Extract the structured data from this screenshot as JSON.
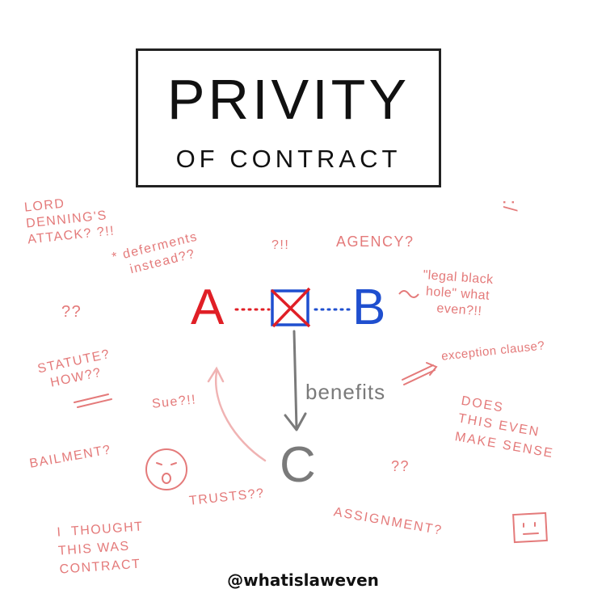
{
  "title": {
    "main": "PRIVITY",
    "sub": "OF CONTRACT"
  },
  "parties": {
    "a": "A",
    "b": "B",
    "c": "C"
  },
  "arrow_label": "benefits",
  "notes": {
    "lord_denning": "LORD\nDENNING'S\nATTACK? ?!!",
    "deferments": "* deferments\n   instead??",
    "qmarks_mid": "?!!",
    "agency": "AGENCY?",
    "frown_mark": ":/",
    "qq_left": "??",
    "legal_black_hole": "\"legal black\n hole\" what\n    even?!!",
    "statute": "STATUTE?\n  HOW??",
    "exception_clause": "exception clause?",
    "sue": "Sue?!!",
    "does_this": "DOES\nTHIS EVEN\nMAKE SENSE",
    "bailment": "BAILMENT?",
    "qq_right": "??",
    "trusts": "TRUSTS??",
    "i_thought": "I  THOUGHT\nTHIS WAS\nCONTRACT",
    "assignment": "ASSIGNMENT?"
  },
  "footer": {
    "handle": "@whatislaweven"
  },
  "colors": {
    "red": "#e01f26",
    "blue": "#1f4fcf",
    "grey": "#7a7a7a",
    "note": "#e47a7a",
    "ink": "#111111"
  },
  "icons": [
    "scared-face-icon",
    "neutral-face-icon",
    "crossed-box-icon",
    "down-arrow-icon",
    "curved-arrow-icon"
  ]
}
